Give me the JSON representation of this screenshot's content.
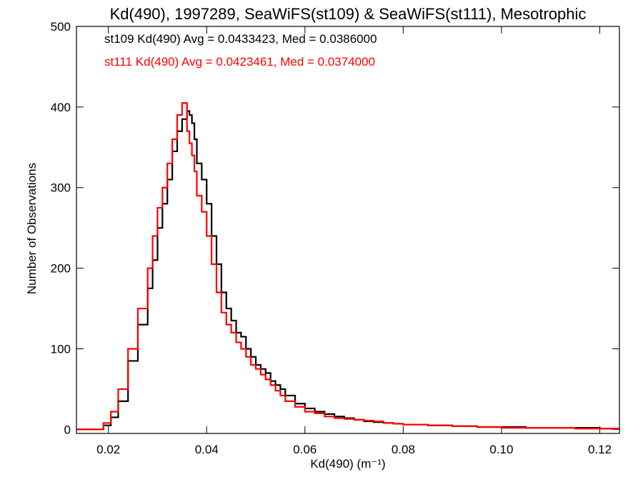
{
  "chart_data": {
    "type": "histogram-step",
    "title": "Kd(490), 1997289, SeaWiFS(st109) & SeaWiFS(st111), Mesotrophic",
    "xlabel": "Kd(490) (m⁻¹)",
    "ylabel": "Number of Observations",
    "xlim": [
      0.0135,
      0.124
    ],
    "ylim": [
      -5,
      500
    ],
    "x_ticks": [
      0.02,
      0.04,
      0.06,
      0.08,
      0.1,
      0.12
    ],
    "x_tick_labels": [
      "0.02",
      "0.04",
      "0.06",
      "0.08",
      "0.10",
      "0.12"
    ],
    "y_ticks": [
      0,
      100,
      200,
      300,
      400,
      500
    ],
    "y_tick_labels": [
      "0",
      "100",
      "200",
      "300",
      "400",
      "500"
    ],
    "grid": false,
    "legend_position": "top-left",
    "series": [
      {
        "name": "st109",
        "color": "#000000",
        "stats_text": "st109 Kd(490) Avg = 0.0433423, Med = 0.0386000",
        "x": [
          0.0135,
          0.0175,
          0.019,
          0.0205,
          0.022,
          0.024,
          0.026,
          0.028,
          0.029,
          0.03,
          0.031,
          0.032,
          0.033,
          0.034,
          0.035,
          0.036,
          0.0365,
          0.037,
          0.0375,
          0.038,
          0.039,
          0.04,
          0.041,
          0.042,
          0.043,
          0.044,
          0.045,
          0.046,
          0.047,
          0.048,
          0.049,
          0.05,
          0.051,
          0.052,
          0.053,
          0.054,
          0.055,
          0.056,
          0.058,
          0.06,
          0.062,
          0.064,
          0.066,
          0.068,
          0.07,
          0.072,
          0.074,
          0.076,
          0.078,
          0.08,
          0.085,
          0.09,
          0.095,
          0.1,
          0.105,
          0.11,
          0.115,
          0.12,
          0.124
        ],
        "y": [
          0,
          0,
          5,
          15,
          35,
          85,
          130,
          175,
          210,
          250,
          280,
          310,
          345,
          370,
          385,
          395,
          390,
          380,
          360,
          330,
          310,
          280,
          240,
          205,
          170,
          150,
          135,
          120,
          115,
          100,
          90,
          80,
          75,
          70,
          60,
          55,
          50,
          42,
          32,
          26,
          22,
          19,
          16,
          14,
          12,
          10,
          9,
          8,
          7,
          6,
          5,
          4,
          3,
          3,
          2,
          2,
          2,
          1,
          1
        ]
      },
      {
        "name": "st111",
        "color": "#ff0000",
        "stats_text": "st111 Kd(490) Avg = 0.0423461, Med = 0.0374000",
        "x": [
          0.0135,
          0.0175,
          0.019,
          0.0205,
          0.022,
          0.024,
          0.026,
          0.028,
          0.029,
          0.03,
          0.031,
          0.032,
          0.033,
          0.034,
          0.035,
          0.036,
          0.0365,
          0.037,
          0.0375,
          0.038,
          0.039,
          0.04,
          0.041,
          0.042,
          0.043,
          0.044,
          0.045,
          0.046,
          0.047,
          0.048,
          0.049,
          0.05,
          0.051,
          0.052,
          0.053,
          0.054,
          0.055,
          0.056,
          0.058,
          0.06,
          0.062,
          0.064,
          0.066,
          0.068,
          0.07,
          0.072,
          0.074,
          0.076,
          0.078,
          0.08,
          0.085,
          0.09,
          0.095,
          0.1,
          0.105,
          0.11,
          0.115,
          0.12,
          0.124
        ],
        "y": [
          0,
          0,
          8,
          22,
          50,
          100,
          150,
          200,
          240,
          275,
          300,
          330,
          360,
          390,
          405,
          370,
          355,
          340,
          320,
          290,
          270,
          240,
          205,
          170,
          145,
          130,
          120,
          108,
          100,
          90,
          80,
          75,
          68,
          62,
          55,
          48,
          42,
          35,
          28,
          22,
          20,
          16,
          14,
          13,
          12,
          11,
          10,
          8,
          7,
          6,
          5,
          4,
          3,
          2,
          2,
          2,
          1,
          1,
          1
        ]
      }
    ]
  }
}
